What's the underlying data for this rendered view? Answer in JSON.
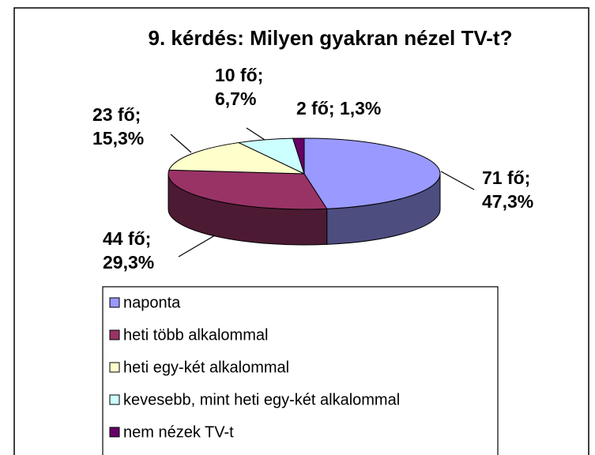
{
  "chart_data": {
    "type": "pie3d",
    "title": "9. kérdés: Milyen gyakran nézel TV-t?",
    "categories": [
      "naponta",
      "heti több alkalommal",
      "heti egy-két alkalommal",
      "kevesebb, mint heti egy-két alkalommal",
      "nem nézek TV-t"
    ],
    "values": [
      71,
      44,
      23,
      10,
      2
    ],
    "value_labels": [
      "71 fő; 47,3%",
      "44 fő; 29,3%",
      "23 fő; 15,3%",
      "10 fő; 6,7%",
      "2 fő; 1,3%"
    ],
    "colors": [
      "#9999ff",
      "#993366",
      "#ffffcc",
      "#ccffff",
      "#660066"
    ],
    "legend": "bottom"
  }
}
